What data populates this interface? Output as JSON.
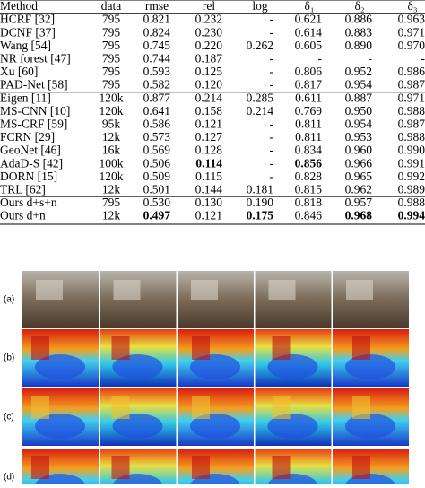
{
  "table": {
    "header": [
      "Method",
      "data",
      "rmse",
      "rel",
      "log",
      "δ₁",
      "δ₂",
      "δ₃"
    ],
    "rows": [
      [
        "HCRF [32]",
        "795",
        "0.821",
        "0.232",
        "-",
        "0.621",
        "0.886",
        "0.963"
      ],
      [
        "DCNF [37]",
        "795",
        "0.824",
        "0.230",
        "-",
        "0.614",
        "0.883",
        "0.971"
      ],
      [
        "Wang [54]",
        "795",
        "0.745",
        "0.220",
        "0.262",
        "0.605",
        "0.890",
        "0.970"
      ],
      [
        "NR forest [47]",
        "795",
        "0.744",
        "0.187",
        "-",
        "-",
        "-",
        "-"
      ],
      [
        "Xu [60]",
        "795",
        "0.593",
        "0.125",
        "-",
        "0.806",
        "0.952",
        "0.986"
      ],
      [
        "PAD-Net [58]",
        "795",
        "0.582",
        "0.120",
        "-",
        "0.817",
        "0.954",
        "0.987"
      ],
      [
        "Eigen [11]",
        "120k",
        "0.877",
        "0.214",
        "0.285",
        "0.611",
        "0.887",
        "0.971"
      ],
      [
        "MS-CNN [10]",
        "120k",
        "0.641",
        "0.158",
        "0.214",
        "0.769",
        "0.950",
        "0.988"
      ],
      [
        "MS-CRF [59]",
        "95k",
        "0.586",
        "0.121",
        "-",
        "0.811",
        "0.954",
        "0.987"
      ],
      [
        "FCRN [29]",
        "12k",
        "0.573",
        "0.127",
        "-",
        "0.811",
        "0.953",
        "0.988"
      ],
      [
        "GeoNet [46]",
        "16k",
        "0.569",
        "0.128",
        "-",
        "0.834",
        "0.960",
        "0.990"
      ],
      [
        "AdaD-S [42]",
        "100k",
        "0.506",
        "0.114",
        "-",
        "0.856",
        "0.966",
        "0.991"
      ],
      [
        "DORN [15]",
        "120k",
        "0.509",
        "0.115",
        "-",
        "0.828",
        "0.965",
        "0.992"
      ],
      [
        "TRL [62]",
        "12k",
        "0.501",
        "0.144",
        "0.181",
        "0.815",
        "0.962",
        "0.989"
      ],
      [
        "Ours d+s+n",
        "795",
        "0.530",
        "0.130",
        "0.190",
        "0.818",
        "0.957",
        "0.988"
      ],
      [
        "Ours d+n",
        "12k",
        "0.497",
        "0.121",
        "0.175",
        "0.846",
        "0.968",
        "0.994"
      ]
    ]
  },
  "figure": {
    "row_labels": [
      "(a)",
      "(b)",
      "(c)",
      "(d)"
    ]
  }
}
